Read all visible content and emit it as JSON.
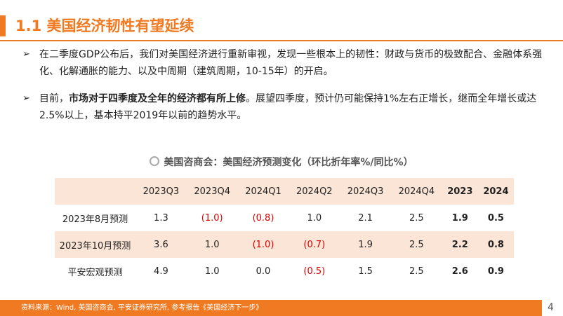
{
  "header": {
    "title": "1.1 美国经济韧性有望延续"
  },
  "bullets": [
    {
      "parts": [
        "在二季度GDP公布后，我们对美国经济进行重新审视，发现一些根本上的韧性：财政与货币的极致配合、金融体系强化、化解通胀的能力、以及中周期（建筑周期，10-15年）的开启。"
      ]
    },
    {
      "parts": [
        "目前，",
        "市场对于四季度及全年的经济都有所上修",
        "。展望四季度，预计仍可能保持1%左右正增长，继而全年增长或达2.5%以上，基本持平2019年以前的趋势水平。"
      ]
    }
  ],
  "table": {
    "caption": "美国咨商会：美国经济预测变化（环比折年率%/同比%）",
    "columns": [
      "2023Q3",
      "2023Q4",
      "2024Q1",
      "2024Q2",
      "2024Q3",
      "2024Q4",
      "2023",
      "2024"
    ],
    "rows": [
      [
        "2023年8月预测",
        "1.3",
        "(1.0)",
        "(0.8)",
        "1.0",
        "2.1",
        "2.5",
        "1.9",
        "0.5"
      ],
      [
        "2023年10月预测",
        "3.6",
        "1.0",
        "(1.0)",
        "(0.7)",
        "1.9",
        "2.5",
        "2.2",
        "0.8"
      ],
      [
        "平安宏观预测",
        "4.9",
        "1.0",
        "0.0",
        "(0.5)",
        "1.5",
        "2.5",
        "2.6",
        "0.9"
      ]
    ]
  },
  "footer": {
    "source": "资料来源：Wind, 美国咨商会, 平安证券研究所, 参考报告《美国经济下一步》",
    "page": "4"
  }
}
